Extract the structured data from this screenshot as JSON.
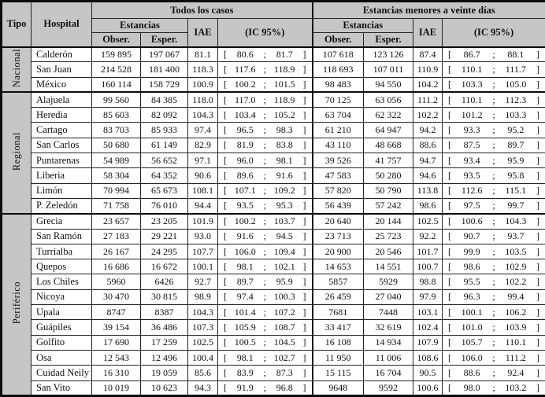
{
  "header": {
    "tipo": "Tipo",
    "hospital": "Hospital",
    "all_cases": "Todos los casos",
    "short_stays": "Estancias menores a veinte días",
    "estancias": "Estancias",
    "obser": "Obser.",
    "esper": "Esper.",
    "iae": "IAE",
    "ic95": "(IC 95%)"
  },
  "ic_symbols": {
    "open": "[",
    "sep": ";",
    "close": "]"
  },
  "colors": {
    "header_bg": "#c6c6c6",
    "row_bg": "#ffffff",
    "border": "#242424",
    "frame": "#0b0b0b"
  },
  "groups": [
    {
      "label": "Nacional",
      "rows": [
        {
          "hospital": "Calderón",
          "all": {
            "obser": "159 895",
            "esper": "197 067",
            "iae": "81.1",
            "lo": "80.6",
            "hi": "81.7"
          },
          "short": {
            "obser": "107 618",
            "esper": "123 126",
            "iae": "87.4",
            "lo": "86.7",
            "hi": "88.1"
          }
        },
        {
          "hospital": "San Juan",
          "all": {
            "obser": "214 528",
            "esper": "181 400",
            "iae": "118.3",
            "lo": "117.6",
            "hi": "118.9"
          },
          "short": {
            "obser": "118 693",
            "esper": "107 011",
            "iae": "110.9",
            "lo": "110.1",
            "hi": "111.7"
          }
        },
        {
          "hospital": "México",
          "all": {
            "obser": "160 114",
            "esper": "158 729",
            "iae": "100.9",
            "lo": "100.2",
            "hi": "101.5"
          },
          "short": {
            "obser": "98 483",
            "esper": "94 550",
            "iae": "104.2",
            "lo": "103.3",
            "hi": "105.0"
          }
        }
      ]
    },
    {
      "label": "Regional",
      "rows": [
        {
          "hospital": "Alajuela",
          "all": {
            "obser": "99 560",
            "esper": "84 385",
            "iae": "118.0",
            "lo": "117.0",
            "hi": "118.9"
          },
          "short": {
            "obser": "70 125",
            "esper": "63 056",
            "iae": "111.2",
            "lo": "110.1",
            "hi": "112.3"
          }
        },
        {
          "hospital": "Heredia",
          "all": {
            "obser": "85 603",
            "esper": "82 092",
            "iae": "104.3",
            "lo": "103.4",
            "hi": "105.2"
          },
          "short": {
            "obser": "63 704",
            "esper": "62 322",
            "iae": "102.2",
            "lo": "101.2",
            "hi": "103.3"
          }
        },
        {
          "hospital": "Cartago",
          "all": {
            "obser": "83 703",
            "esper": "85 933",
            "iae": "97.4",
            "lo": "96.5",
            "hi": "98.3"
          },
          "short": {
            "obser": "61 210",
            "esper": "64 947",
            "iae": "94.2",
            "lo": "93.3",
            "hi": "95.2"
          }
        },
        {
          "hospital": "San Carlos",
          "all": {
            "obser": "50 680",
            "esper": "61 149",
            "iae": "82.9",
            "lo": "81.9",
            "hi": "83.8"
          },
          "short": {
            "obser": "43 110",
            "esper": "48 668",
            "iae": "88.6",
            "lo": "87.5",
            "hi": "89.7"
          }
        },
        {
          "hospital": "Puntarenas",
          "all": {
            "obser": "54 989",
            "esper": "56 652",
            "iae": "97.1",
            "lo": "96.0",
            "hi": "98.1"
          },
          "short": {
            "obser": "39 526",
            "esper": "41 757",
            "iae": "94.7",
            "lo": "93.4",
            "hi": "95.9"
          }
        },
        {
          "hospital": "Liberia",
          "all": {
            "obser": "58 304",
            "esper": "64 352",
            "iae": "90.6",
            "lo": "89.6",
            "hi": "91.6"
          },
          "short": {
            "obser": "47 583",
            "esper": "50 280",
            "iae": "94.6",
            "lo": "93.5",
            "hi": "95.8"
          }
        },
        {
          "hospital": "Limón",
          "all": {
            "obser": "70 994",
            "esper": "65 673",
            "iae": "108.1",
            "lo": "107.1",
            "hi": "109.2"
          },
          "short": {
            "obser": "57 820",
            "esper": "50 790",
            "iae": "113.8",
            "lo": "112.6",
            "hi": "115.1"
          }
        },
        {
          "hospital": "P. Zeledón",
          "all": {
            "obser": "71 758",
            "esper": "76 010",
            "iae": "94.4",
            "lo": "93.5",
            "hi": "95.3"
          },
          "short": {
            "obser": "56 439",
            "esper": "57 242",
            "iae": "98.6",
            "lo": "97.5",
            "hi": "99.7"
          }
        }
      ]
    },
    {
      "label": "Periférico",
      "rows": [
        {
          "hospital": "Grecia",
          "all": {
            "obser": "23 657",
            "esper": "23 205",
            "iae": "101.9",
            "lo": "100.2",
            "hi": "103.7"
          },
          "short": {
            "obser": "20 640",
            "esper": "20 144",
            "iae": "102.5",
            "lo": "100.6",
            "hi": "104.3"
          }
        },
        {
          "hospital": "San Ramón",
          "all": {
            "obser": "27 183",
            "esper": "29 221",
            "iae": "93.0",
            "lo": "91.6",
            "hi": "94.5"
          },
          "short": {
            "obser": "23 713",
            "esper": "25 723",
            "iae": "92.2",
            "lo": "90.7",
            "hi": "93.7"
          }
        },
        {
          "hospital": "Turrialba",
          "all": {
            "obser": "26 167",
            "esper": "24 295",
            "iae": "107.7",
            "lo": "106.0",
            "hi": "109.4"
          },
          "short": {
            "obser": "20 900",
            "esper": "20 546",
            "iae": "101.7",
            "lo": "99.9",
            "hi": "103.5"
          }
        },
        {
          "hospital": "Quepos",
          "all": {
            "obser": "16 686",
            "esper": "16 672",
            "iae": "100.1",
            "lo": "98.1",
            "hi": "102.1"
          },
          "short": {
            "obser": "14 653",
            "esper": "14 551",
            "iae": "100.7",
            "lo": "98.6",
            "hi": "102.9"
          }
        },
        {
          "hospital": "Los Chiles",
          "all": {
            "obser": "5960",
            "esper": "6426",
            "iae": "92.7",
            "lo": "89.7",
            "hi": "95.9"
          },
          "short": {
            "obser": "5857",
            "esper": "5929",
            "iae": "98.8",
            "lo": "95.5",
            "hi": "102.2"
          }
        },
        {
          "hospital": "Nicoya",
          "all": {
            "obser": "30 470",
            "esper": "30 815",
            "iae": "98.9",
            "lo": "97.4",
            "hi": "100.3"
          },
          "short": {
            "obser": "26 459",
            "esper": "27 040",
            "iae": "97.9",
            "lo": "96.3",
            "hi": "99.4"
          }
        },
        {
          "hospital": "Upala",
          "all": {
            "obser": "8747",
            "esper": "8387",
            "iae": "104.3",
            "lo": "101.4",
            "hi": "107.2"
          },
          "short": {
            "obser": "7681",
            "esper": "7448",
            "iae": "103.1",
            "lo": "100.1",
            "hi": "106.2"
          }
        },
        {
          "hospital": "Guápiles",
          "all": {
            "obser": "39 154",
            "esper": "36 486",
            "iae": "107.3",
            "lo": "105.9",
            "hi": "108.7"
          },
          "short": {
            "obser": "33 417",
            "esper": "32 619",
            "iae": "102.4",
            "lo": "101.0",
            "hi": "103.9"
          }
        },
        {
          "hospital": "Golfito",
          "all": {
            "obser": "17 690",
            "esper": "17 259",
            "iae": "102.5",
            "lo": "100.5",
            "hi": "104.5"
          },
          "short": {
            "obser": "16 108",
            "esper": "14 934",
            "iae": "107.9",
            "lo": "105.7",
            "hi": "110.1"
          }
        },
        {
          "hospital": "Osa",
          "all": {
            "obser": "12 543",
            "esper": "12 496",
            "iae": "100.4",
            "lo": "98.1",
            "hi": "102.7"
          },
          "short": {
            "obser": "11 950",
            "esper": "11 006",
            "iae": "108.6",
            "lo": "106.0",
            "hi": "111.2"
          }
        },
        {
          "hospital": "Cuidad Neily",
          "all": {
            "obser": "16 310",
            "esper": "19 059",
            "iae": "85.6",
            "lo": "83.9",
            "hi": "87.3"
          },
          "short": {
            "obser": "15 115",
            "esper": "16 704",
            "iae": "90.5",
            "lo": "88.6",
            "hi": "92.4"
          }
        },
        {
          "hospital": "San Vito",
          "all": {
            "obser": "10 019",
            "esper": "10 623",
            "iae": "94.3",
            "lo": "91.9",
            "hi": "96.8"
          },
          "short": {
            "obser": "9648",
            "esper": "9592",
            "iae": "100.6",
            "lo": "98.0",
            "hi": "103.2"
          }
        }
      ]
    }
  ]
}
